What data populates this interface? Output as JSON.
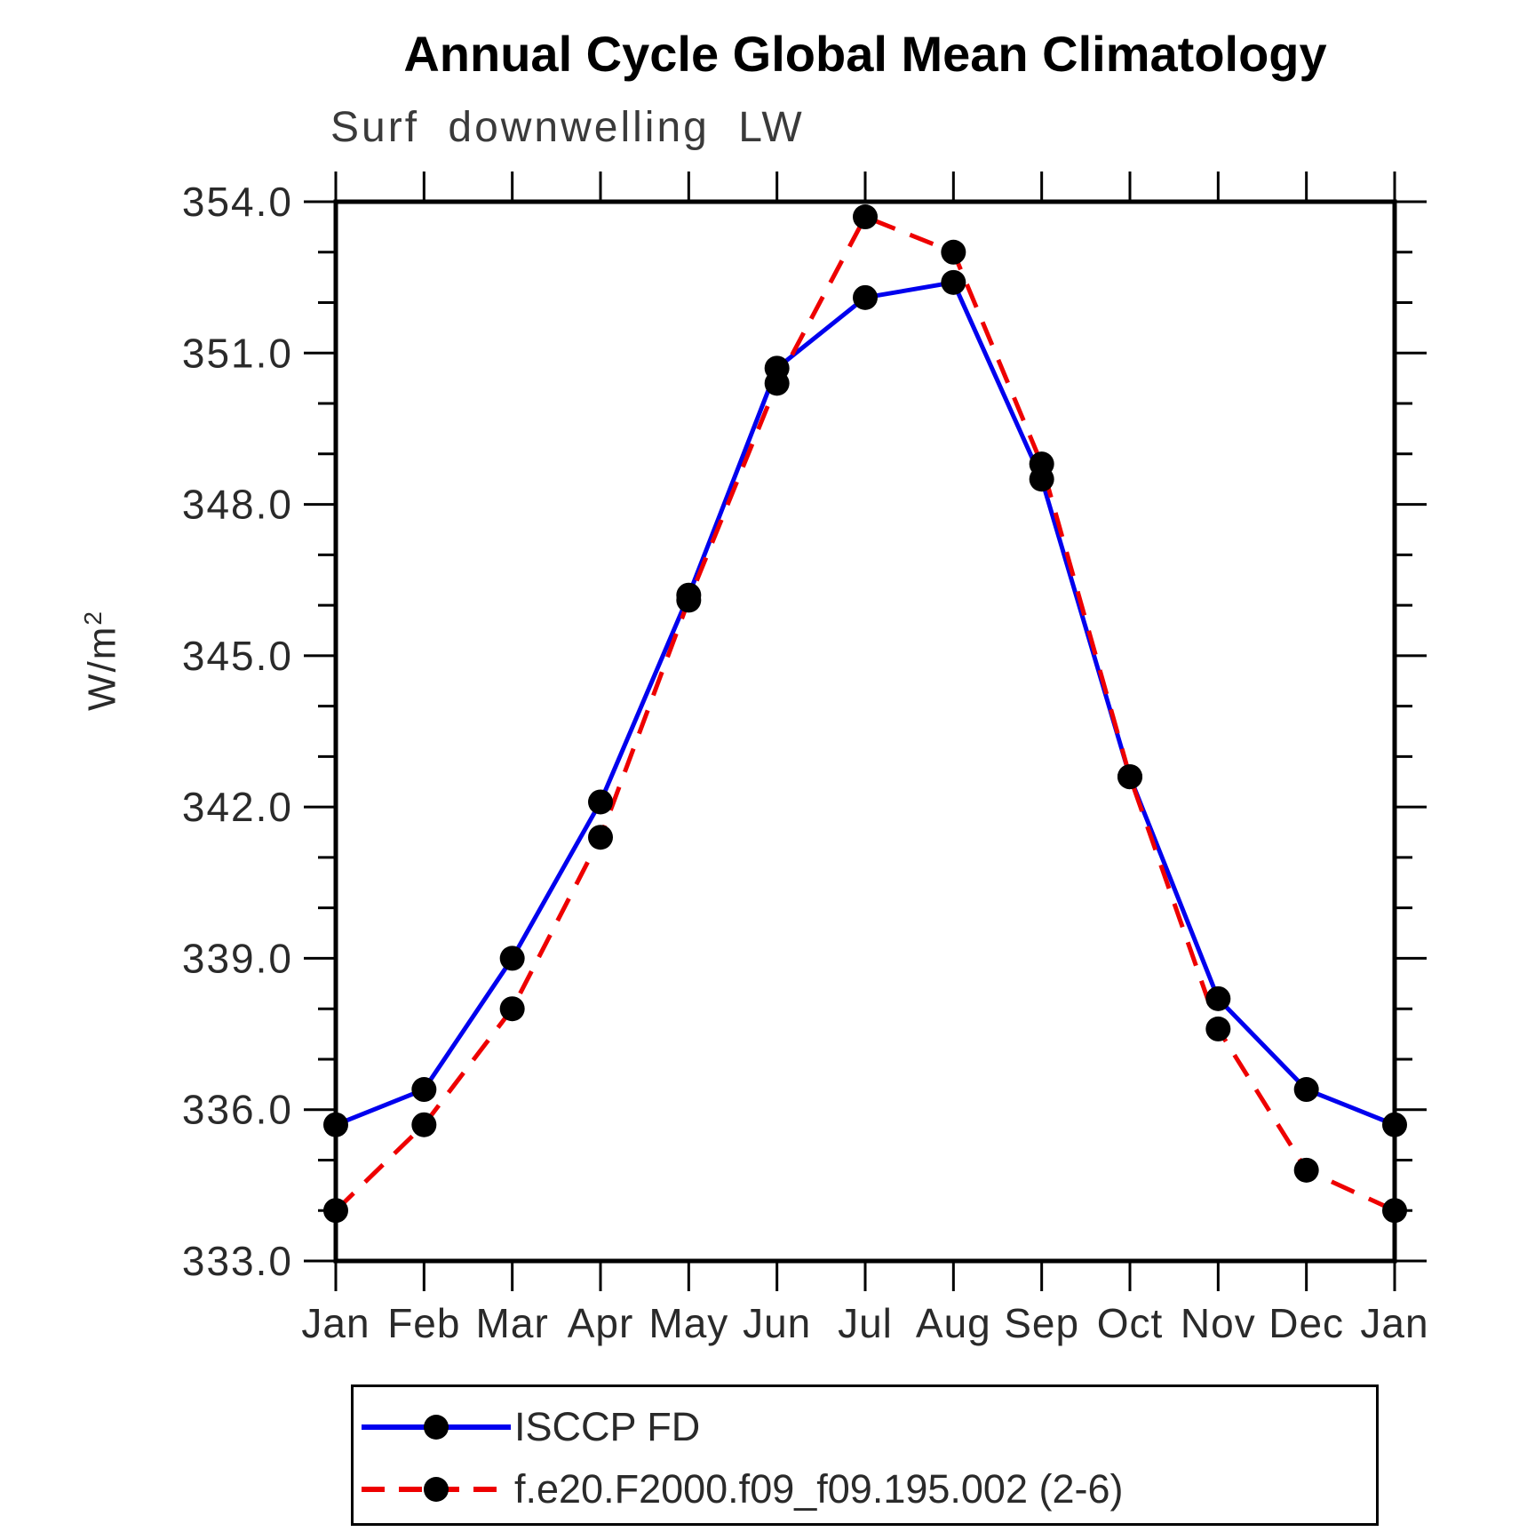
{
  "title": "Annual Cycle Global Mean Climatology",
  "subtitle": "Surf downwelling LW",
  "ylabel": "W/m",
  "ylabel_exponent": "2",
  "colors": {
    "obs_line": "#0000ee",
    "model_line": "#ee0000",
    "marker": "#000000",
    "axis": "#000000",
    "tick_label": "#2a2a2a"
  },
  "legend": {
    "position": "bottom",
    "entries": [
      {
        "label": "ISCCP FD",
        "color": "#0000ee",
        "style": "solid"
      },
      {
        "label": "f.e20.F2000.f09_f09.195.002 (2-6)",
        "color": "#ee0000",
        "style": "dashed"
      }
    ]
  },
  "chart_data": {
    "type": "line",
    "categories": [
      "Jan",
      "Feb",
      "Mar",
      "Apr",
      "May",
      "Jun",
      "Jul",
      "Aug",
      "Sep",
      "Oct",
      "Nov",
      "Dec",
      "Jan"
    ],
    "series": [
      {
        "name": "ISCCP FD",
        "color": "#0000ee",
        "dash": false,
        "values": [
          335.7,
          336.4,
          339.0,
          342.1,
          346.2,
          350.7,
          352.1,
          352.4,
          348.5,
          342.6,
          338.2,
          336.4,
          335.7
        ]
      },
      {
        "name": "f.e20.F2000.f09_f09.195.002 (2-6)",
        "color": "#ee0000",
        "dash": true,
        "values": [
          334.0,
          335.7,
          338.0,
          341.4,
          346.1,
          350.4,
          353.7,
          353.0,
          348.8,
          342.6,
          337.6,
          334.8,
          334.0
        ]
      }
    ],
    "xlabel": "",
    "ylabel": "W/m2",
    "ylim": [
      333.0,
      354.0
    ],
    "ytick_major_step": 3.0,
    "ytick_minor_step": 1.0,
    "ytick_labels": [
      "354.0",
      "351.0",
      "348.0",
      "345.0",
      "342.0",
      "339.0",
      "336.0",
      "333.0"
    ],
    "grid": false,
    "marker": "filled-circle",
    "legend_position": "below-axis"
  }
}
